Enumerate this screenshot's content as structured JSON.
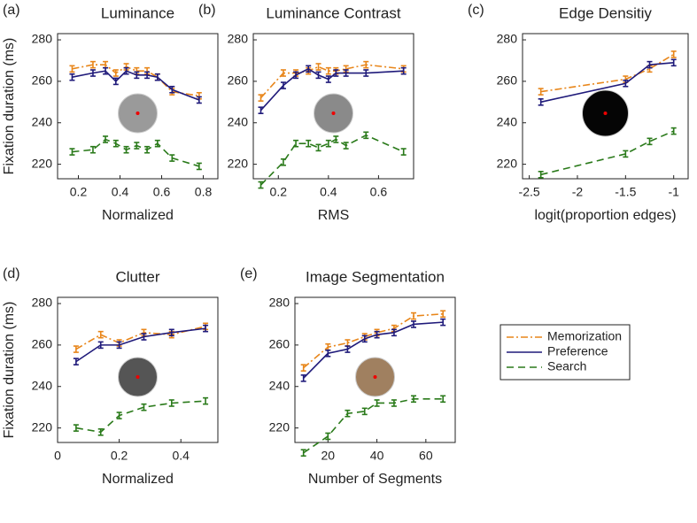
{
  "chart_data": [
    {
      "type": "line",
      "panel_label": "(a)",
      "title": "Luminance",
      "xlabel": "Normalized",
      "ylabel": "Fixation duration (ms)",
      "x": [
        0.17,
        0.27,
        0.33,
        0.38,
        0.43,
        0.48,
        0.53,
        0.58,
        0.65,
        0.78
      ],
      "xlim": [
        0.1,
        0.87
      ],
      "xticks": [
        0.2,
        0.4,
        0.6,
        0.8
      ],
      "ylim": [
        213,
        283
      ],
      "yticks": [
        220,
        240,
        260,
        280
      ],
      "series": [
        {
          "color": "#e8861a",
          "dash": "dashdot",
          "error": 1.5,
          "values": [
            266,
            268,
            268,
            264,
            267,
            265,
            265,
            262,
            255,
            253
          ]
        },
        {
          "color": "#1f1a7a",
          "dash": "solid",
          "error": 1.5,
          "values": [
            262,
            264,
            265,
            260,
            265,
            263,
            263,
            262,
            256,
            251
          ]
        },
        {
          "color": "#2a7a1a",
          "dash": "dash",
          "error": 1.5,
          "values": [
            226,
            227,
            232,
            230,
            227,
            229,
            227,
            230,
            223,
            219
          ]
        }
      ]
    },
    {
      "type": "line",
      "panel_label": "(b)",
      "title": "Luminance Contrast",
      "xlabel": "RMS",
      "x": [
        0.13,
        0.22,
        0.27,
        0.32,
        0.36,
        0.4,
        0.43,
        0.47,
        0.55,
        0.7
      ],
      "xlim": [
        0.1,
        0.74
      ],
      "xticks": [
        0.2,
        0.4,
        0.6
      ],
      "ylim": [
        213,
        283
      ],
      "yticks": [
        220,
        240,
        260,
        280
      ],
      "series": [
        {
          "color": "#e8861a",
          "dash": "dashdot",
          "error": 1.5,
          "values": [
            252,
            264,
            264,
            265,
            267,
            265,
            265,
            266,
            268,
            266
          ]
        },
        {
          "color": "#1f1a7a",
          "dash": "solid",
          "error": 1.5,
          "values": [
            246,
            258,
            263,
            266,
            263,
            261,
            264,
            264,
            264,
            265
          ]
        },
        {
          "color": "#2a7a1a",
          "dash": "dash",
          "error": 1.5,
          "values": [
            210,
            221,
            230,
            230,
            228,
            230,
            232,
            229,
            234,
            226
          ]
        }
      ]
    },
    {
      "type": "line",
      "panel_label": "(c)",
      "title": "Edge Densitiy",
      "xlabel": "logit(proportion edges)",
      "x": [
        -2.38,
        -1.5,
        -1.25,
        -1
      ],
      "xlim": [
        -2.57,
        -0.85
      ],
      "xticks": [
        -2.5,
        -2,
        -1.5,
        -1
      ],
      "ylim": [
        213,
        283
      ],
      "yticks": [
        220,
        240,
        260,
        280
      ],
      "series": [
        {
          "color": "#e8861a",
          "dash": "dashdot",
          "error": 1.5,
          "values": [
            255,
            261,
            266,
            273
          ]
        },
        {
          "color": "#1f1a7a",
          "dash": "solid",
          "error": 1.5,
          "values": [
            250,
            259,
            268,
            269
          ]
        },
        {
          "color": "#2a7a1a",
          "dash": "dash",
          "error": 1.5,
          "values": [
            215,
            225,
            231,
            236
          ]
        }
      ]
    },
    {
      "type": "line",
      "panel_label": "(d)",
      "title": "Clutter",
      "xlabel": "Normalized",
      "ylabel": "Fixation duration (ms)",
      "x": [
        0.06,
        0.14,
        0.2,
        0.28,
        0.37,
        0.48
      ],
      "xlim": [
        0,
        0.52
      ],
      "xticks": [
        0,
        0.2,
        0.4
      ],
      "ylim": [
        213,
        283
      ],
      "yticks": [
        220,
        240,
        260,
        280
      ],
      "series": [
        {
          "color": "#e8861a",
          "dash": "dashdot",
          "error": 1.5,
          "values": [
            258,
            265,
            261,
            266,
            265,
            269
          ]
        },
        {
          "color": "#1f1a7a",
          "dash": "solid",
          "error": 1.5,
          "values": [
            252,
            260,
            260,
            264,
            266,
            268
          ]
        },
        {
          "color": "#2a7a1a",
          "dash": "dash",
          "error": 1.5,
          "values": [
            220,
            218,
            226,
            230,
            232,
            233
          ]
        }
      ]
    },
    {
      "type": "line",
      "panel_label": "(e)",
      "title": "Image Segmentation",
      "xlabel": "Number of Segments",
      "x": [
        10,
        20,
        28,
        35,
        40,
        47,
        55,
        67
      ],
      "xlim": [
        6.5,
        72
      ],
      "xticks": [
        20,
        40,
        60
      ],
      "ylim": [
        213,
        283
      ],
      "yticks": [
        220,
        240,
        260,
        280
      ],
      "series": [
        {
          "color": "#e8861a",
          "dash": "dashdot",
          "error": 1.5,
          "values": [
            249,
            259,
            261,
            264,
            266,
            268,
            274,
            275
          ]
        },
        {
          "color": "#1f1a7a",
          "dash": "solid",
          "error": 1.5,
          "values": [
            244,
            256,
            258,
            263,
            265,
            266,
            270,
            271
          ]
        },
        {
          "color": "#2a7a1a",
          "dash": "dash",
          "error": 1.5,
          "values": [
            208,
            216,
            227,
            228,
            232,
            232,
            234,
            234
          ]
        }
      ]
    }
  ],
  "legend": {
    "position": "right",
    "entries": [
      "Memorization",
      "Preference",
      "Search"
    ]
  }
}
